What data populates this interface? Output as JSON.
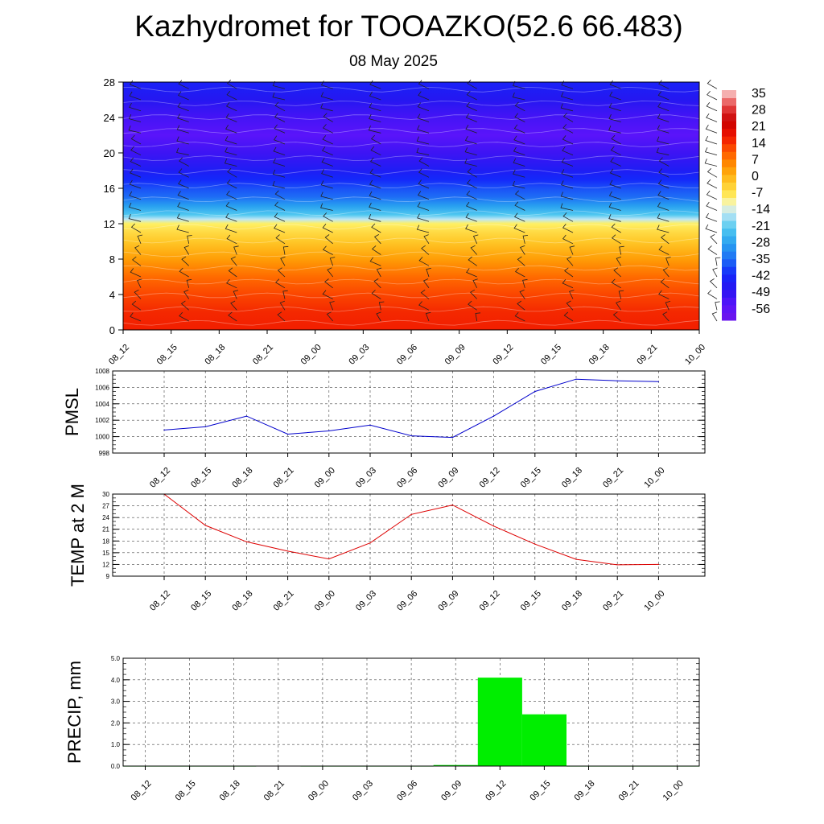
{
  "title": "Kazhydromet for TOOAZKO(52.6 66.483)",
  "subtitle": "08 May 2025",
  "colors": {
    "pmsl_line": "#0000cc",
    "temp_line": "#dd0000",
    "precip_bar": "#00ee00"
  },
  "chart_data": [
    {
      "type": "heatmap",
      "title": "",
      "xlabel": "",
      "ylabel": "",
      "x": [
        "08_12",
        "08_15",
        "08_18",
        "08_21",
        "09_00",
        "09_03",
        "09_06",
        "09_09",
        "09_12",
        "09_15",
        "09_18",
        "09_21",
        "10_00"
      ],
      "ylim": [
        0,
        28
      ],
      "yticks": [
        0,
        4,
        8,
        12,
        16,
        20,
        24,
        28
      ],
      "colorbar": {
        "labels": [
          "35",
          "28",
          "21",
          "14",
          "7",
          "0",
          "-7",
          "-14",
          "-21",
          "-28",
          "-35",
          "-42",
          "-49",
          "-56"
        ],
        "range": [
          -63,
          42
        ]
      },
      "profile": {
        "heights": [
          0,
          2,
          4,
          6,
          8,
          10,
          11,
          12,
          12.5,
          13,
          14,
          15,
          16,
          17,
          18,
          20,
          22,
          24,
          26,
          28
        ],
        "values": [
          20,
          19,
          16,
          12,
          6,
          0,
          -3,
          -7,
          -14,
          -21,
          -28,
          -35,
          -38,
          -42,
          -46,
          -52,
          -56,
          -53,
          -48,
          -44
        ]
      }
    },
    {
      "type": "line",
      "ylabel": "PMSL",
      "x": [
        "08_12",
        "08_15",
        "08_18",
        "08_21",
        "09_00",
        "09_03",
        "09_06",
        "09_09",
        "09_12",
        "09_15",
        "09_18",
        "09_21",
        "10_00"
      ],
      "series": [
        {
          "values": [
            1000.8,
            1001.2,
            1002.5,
            1000.3,
            1000.7,
            1001.4,
            1000.1,
            999.9,
            1002.5,
            1005.5,
            1007.0,
            1006.8,
            1006.7
          ]
        }
      ],
      "ylim": [
        998,
        1008
      ],
      "yticks": [
        998,
        1000,
        1002,
        1004,
        1006,
        1008
      ],
      "grid": true
    },
    {
      "type": "line",
      "ylabel": "TEMP at 2 M",
      "x": [
        "08_12",
        "08_15",
        "08_18",
        "08_21",
        "09_00",
        "09_03",
        "09_06",
        "09_09",
        "09_12",
        "09_15",
        "09_18",
        "09_21",
        "10_00"
      ],
      "series": [
        {
          "values": [
            30.0,
            22.0,
            17.8,
            15.4,
            13.4,
            17.5,
            24.8,
            27.2,
            21.8,
            17.2,
            13.3,
            11.9,
            12.0
          ]
        }
      ],
      "ylim": [
        9,
        30
      ],
      "yticks": [
        9,
        12,
        15,
        18,
        21,
        24,
        27,
        30
      ],
      "grid": true
    },
    {
      "type": "bar",
      "ylabel": "PRECIP, mm",
      "categories": [
        "08_12",
        "08_15",
        "08_18",
        "08_21",
        "09_00",
        "09_03",
        "09_06",
        "09_09",
        "09_12",
        "09_15",
        "09_18",
        "09_21",
        "10_00"
      ],
      "values": [
        0,
        0,
        0,
        0.02,
        0,
        0,
        0,
        0.05,
        4.1,
        2.4,
        0,
        0,
        0
      ],
      "ylim": [
        0,
        5
      ],
      "yticks": [
        "0.0",
        "1.0",
        "2.0",
        "3.0",
        "4.0",
        "5.0"
      ],
      "grid": true
    }
  ]
}
